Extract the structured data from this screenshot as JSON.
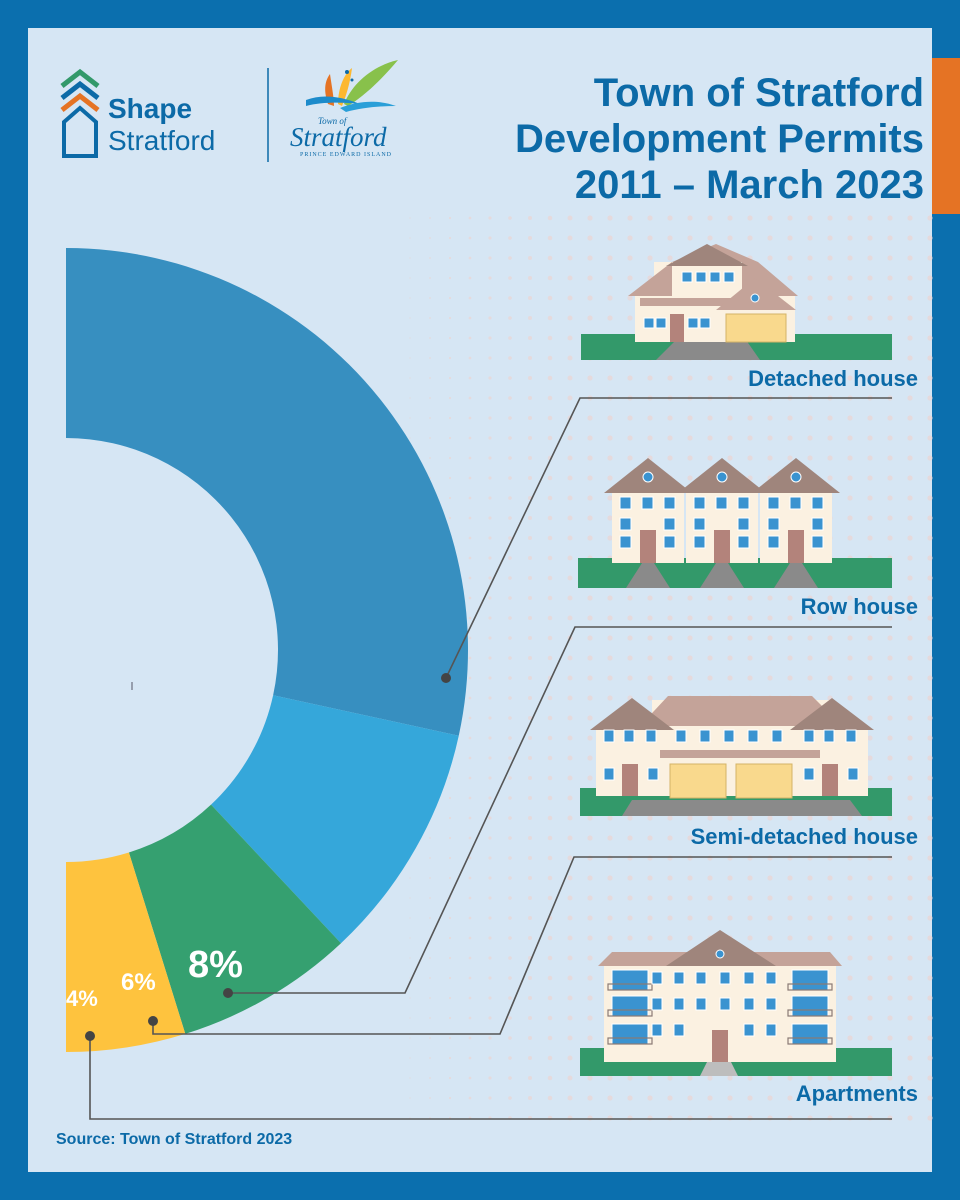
{
  "header": {
    "title_lines": [
      "Town of Stratford",
      "Development Permits",
      "2011 – March 2023"
    ]
  },
  "brand": {
    "shape_word": "Shape",
    "stratford_word": "Stratford",
    "town_of": "Town of",
    "town_script": "Stratford",
    "province": "PRINCE EDWARD ISLAND"
  },
  "chart_data": {
    "type": "pie",
    "categories": [
      "Detached house",
      "Row house",
      "Semi-detached house",
      "Apartments"
    ],
    "values": [
      null,
      8,
      6,
      4
    ],
    "labels": [
      "",
      "8%",
      "6%",
      "4%"
    ],
    "colors": [
      "#378fc0",
      "#35a7da",
      "#35a070",
      "#fec33e"
    ]
  },
  "footer": {
    "source": "Source: Town of Stratford 2023"
  },
  "colors": {
    "accent_blue": "#0b6fae",
    "panel": "#d6e6f4",
    "orange": "#e57324",
    "grass": "#33996a"
  },
  "icons": [
    "shape-stratford-logo-icon",
    "town-of-stratford-logo-icon",
    "detached-house-icon",
    "row-house-icon",
    "semi-detached-house-icon",
    "apartments-icon"
  ]
}
